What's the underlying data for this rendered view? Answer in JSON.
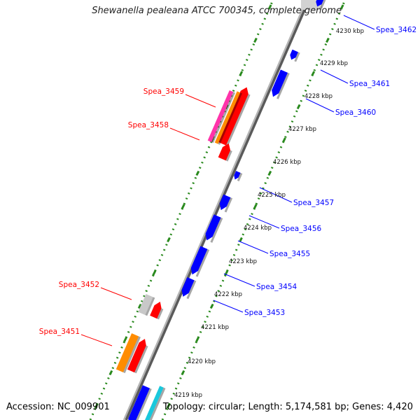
{
  "title": "Shewanella pealeana ATCC 700345, complete genome",
  "accession": "Accession: NC_009901",
  "topology": "Topology: circular; Length: 5,174,581 bp; Genes: 4,420",
  "colors": {
    "forward_gene": "#ff0000",
    "reverse_gene": "#0000ff",
    "backbone": "#8c8c8c",
    "ruler": "#2a8a1e",
    "orange_feature": "#ff8c00",
    "magenta_feature": "#ff33aa",
    "grey_feature": "#c8c8c8",
    "cyan_feature": "#19c8dc"
  },
  "ruler_labels": [
    "4230 kbp",
    "4229 kbp",
    "4228 kbp",
    "4227 kbp",
    "4226 kbp",
    "4225 kbp",
    "4224 kbp",
    "4223 kbp",
    "4222 kbp",
    "4221 kbp",
    "4220 kbp",
    "4219 kbp"
  ],
  "genes": {
    "reverse": [
      "Spea_3462",
      "Spea_3461",
      "Spea_3460",
      "Spea_3457",
      "Spea_3456",
      "Spea_3455",
      "Spea_3454",
      "Spea_3453"
    ],
    "forward": [
      "Spea_3459",
      "Spea_3458",
      "Spea_3452",
      "Spea_3451"
    ]
  }
}
